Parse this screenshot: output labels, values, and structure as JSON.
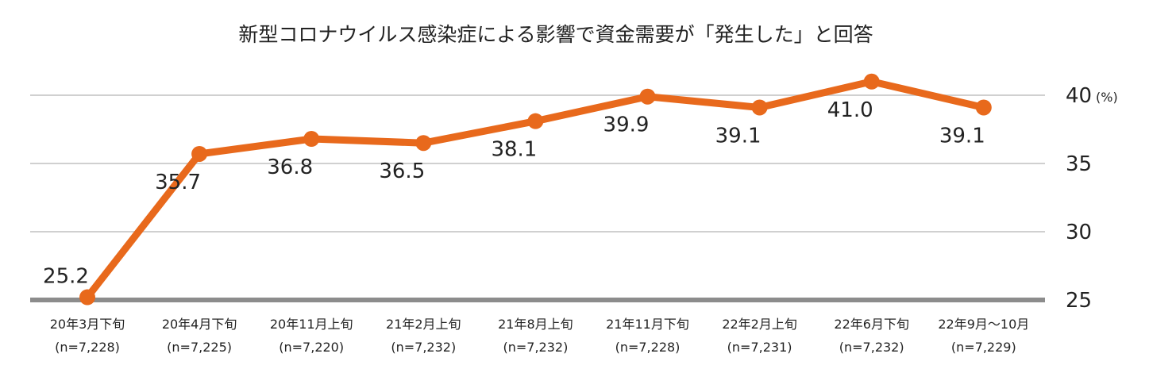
{
  "chart_data": {
    "type": "line",
    "title": "新型コロナウイルス感染症による影響で資金需要が「発生した」と回答",
    "unit": "(%)",
    "categories": [
      "20年3月下旬",
      "20年4月下旬",
      "20年11月上旬",
      "21年2月上旬",
      "21年8月上旬",
      "21年11月下旬",
      "22年2月上旬",
      "22年6月下旬",
      "22年9月～10月"
    ],
    "sample_sizes": [
      "(n=7,228)",
      "(n=7,225)",
      "(n=7,220)",
      "(n=7,232)",
      "(n=7,232)",
      "(n=7,228)",
      "(n=7,231)",
      "(n=7,232)",
      "(n=7,229)"
    ],
    "series": [
      {
        "values": [
          25.2,
          35.7,
          36.8,
          36.5,
          38.1,
          39.9,
          39.1,
          41.0,
          39.1
        ],
        "labels": [
          "25.2",
          "35.7",
          "36.8",
          "36.5",
          "38.1",
          "39.9",
          "39.1",
          "41.0",
          "39.1"
        ],
        "color": "#e8691c"
      }
    ],
    "y_ticks": [
      25,
      30,
      35,
      40
    ],
    "ylim": [
      25,
      40
    ],
    "grid": true,
    "legend": "none"
  }
}
